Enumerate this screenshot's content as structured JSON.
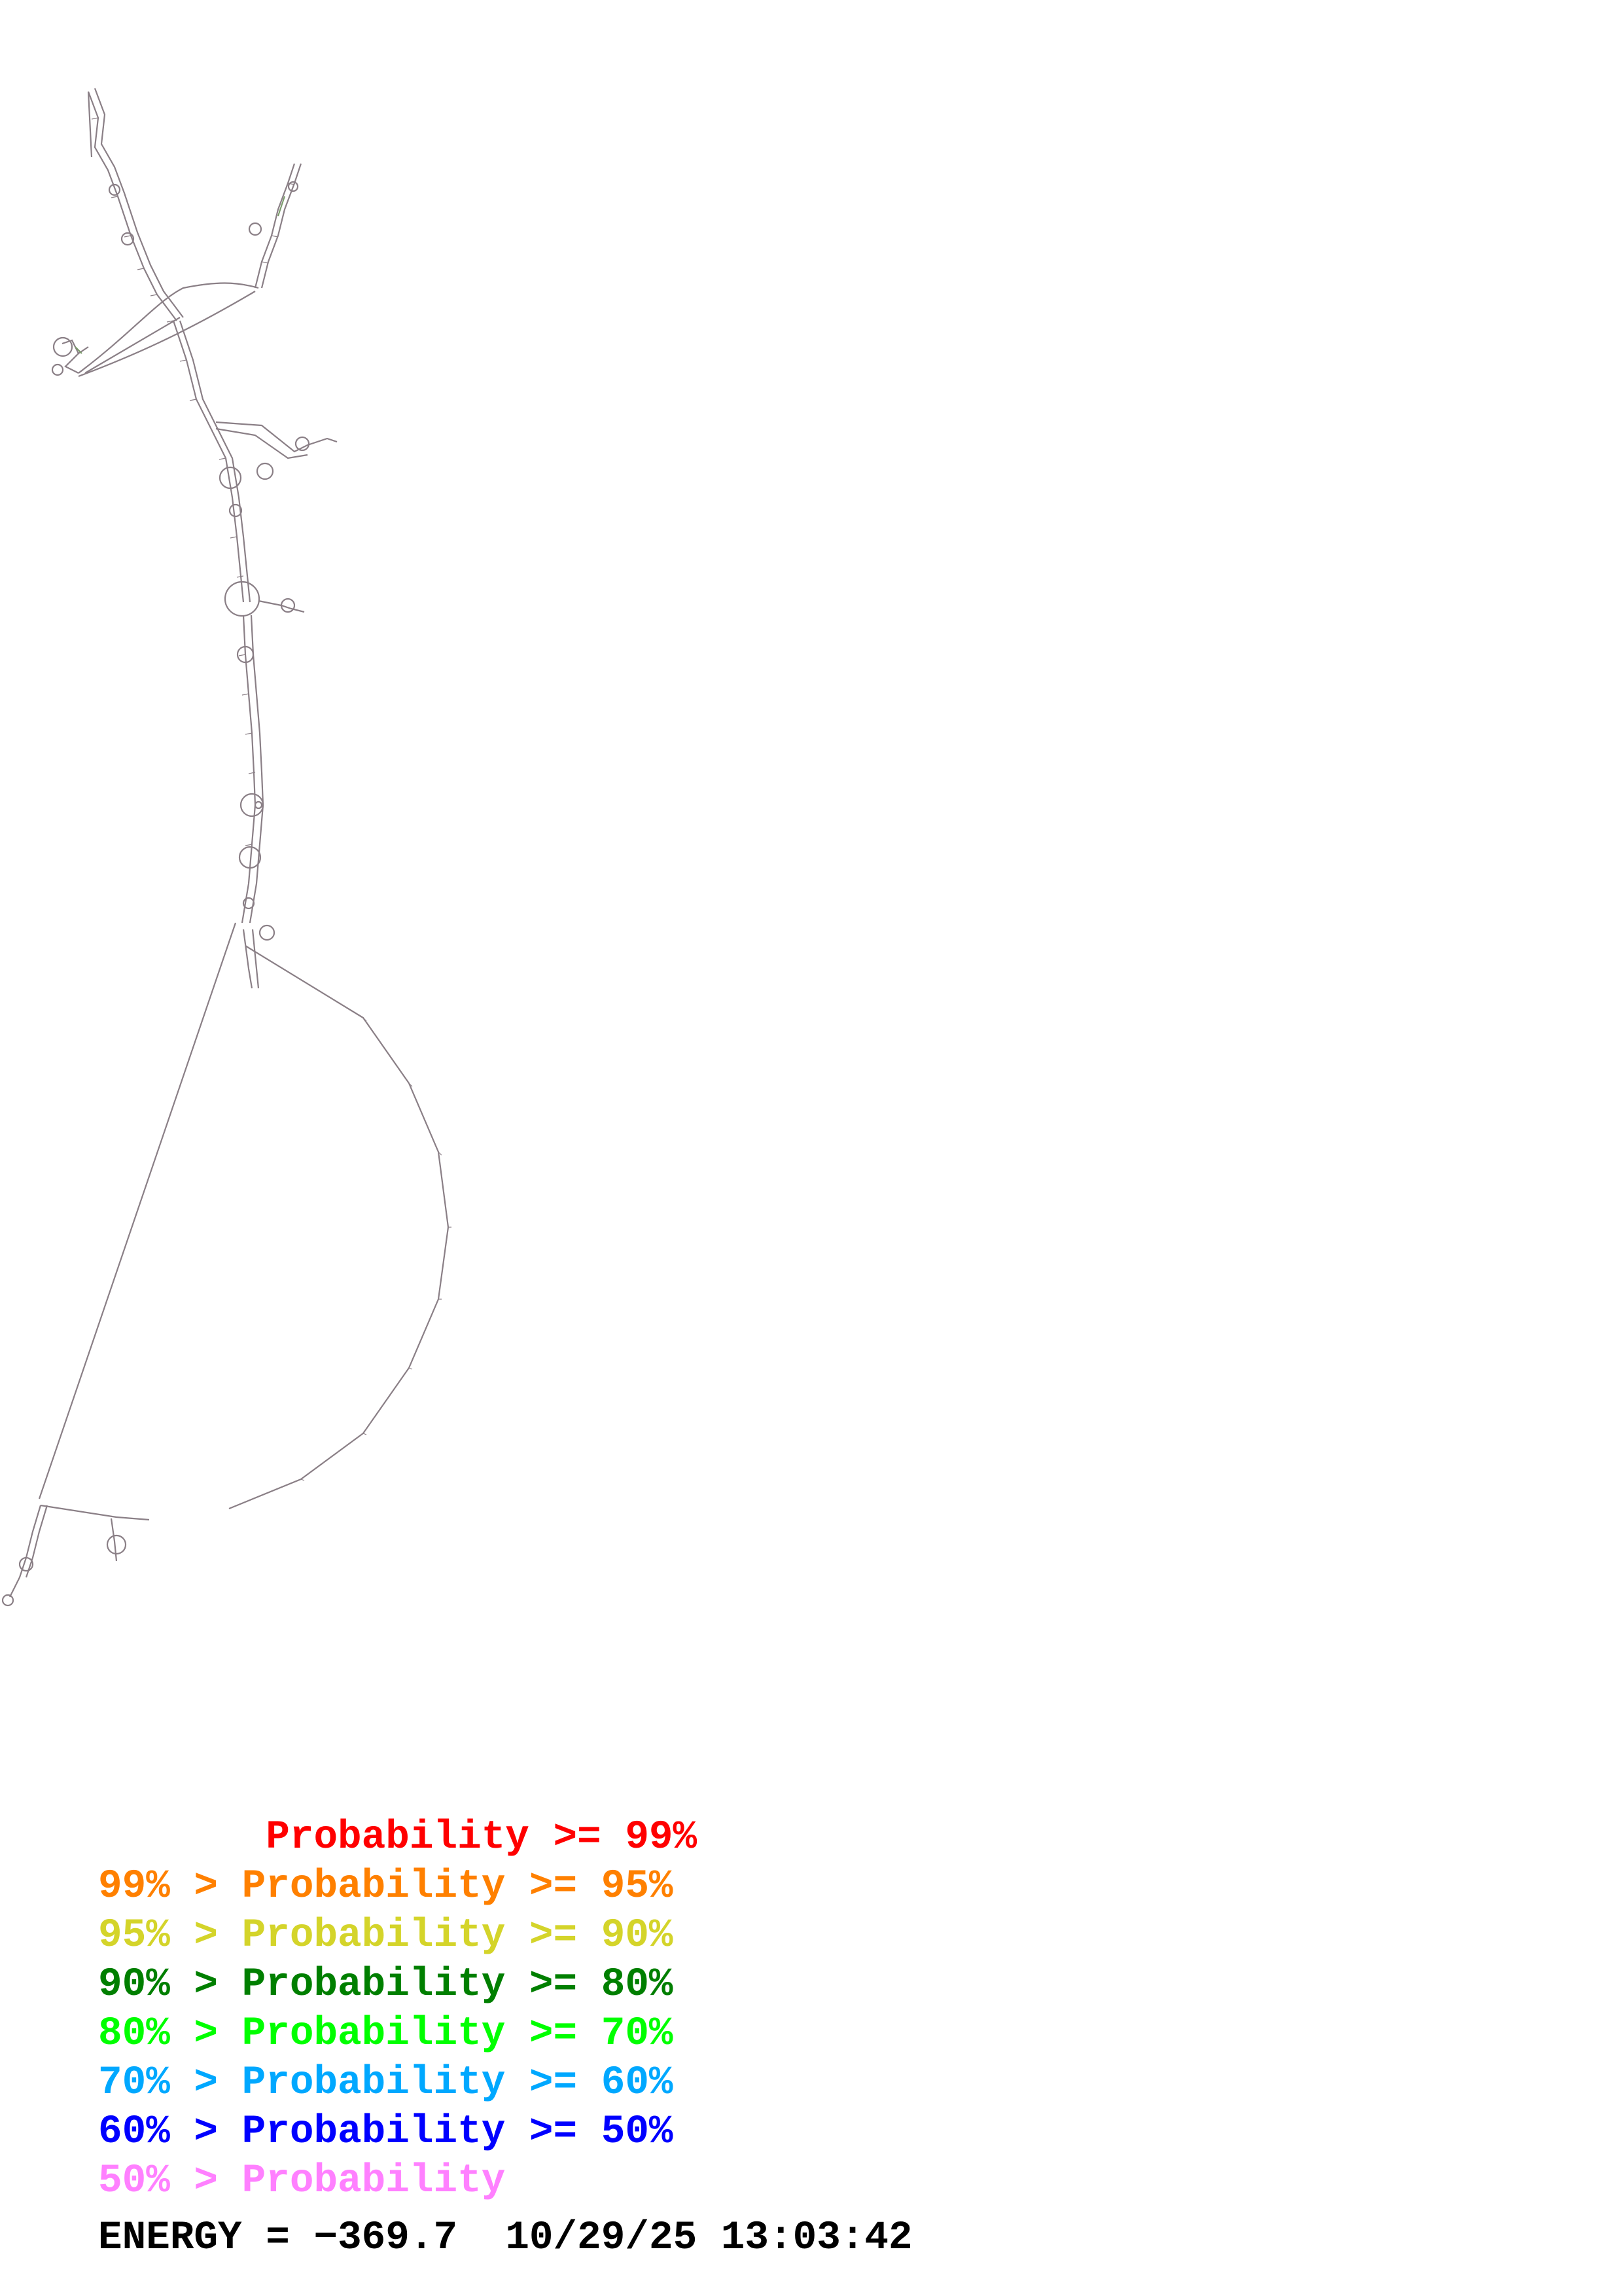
{
  "legend": [
    {
      "text": "       Probability >= 99%",
      "color": "#ff0000"
    },
    {
      "text": "99% > Probability >= 95%",
      "color": "#ff8000"
    },
    {
      "text": "95% > Probability >= 90%",
      "color": "#d4d42a"
    },
    {
      "text": "90% > Probability >= 80%",
      "color": "#007f00"
    },
    {
      "text": "80% > Probability >= 70%",
      "color": "#00ff00"
    },
    {
      "text": "70% > Probability >= 60%",
      "color": "#00a8ff"
    },
    {
      "text": "60% > Probability >= 50%",
      "color": "#0000ff"
    },
    {
      "text": "50% > Probability",
      "color": "#ff80ff"
    }
  ],
  "footer": {
    "energy_label": "ENERGY = ",
    "energy_value": "−369.7",
    "datetime": "10/29/25 13:03:42"
  },
  "colors": {
    "structure_line": "#8a7f86",
    "background": "#ffffff"
  }
}
